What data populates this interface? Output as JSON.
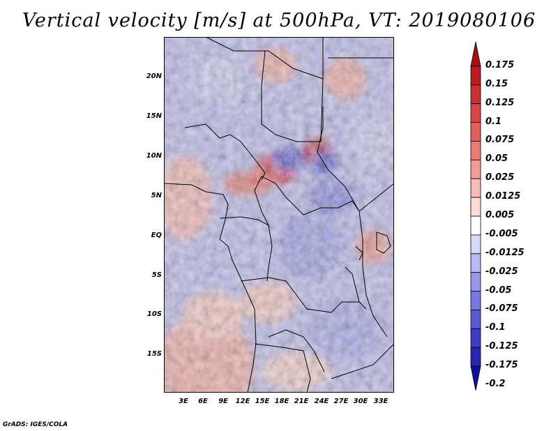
{
  "title": "Vertical velocity [m/s] at 500hPa, VT: 2019080106",
  "credit": "GrADS: IGES/COLA",
  "map": {
    "lat_labels": [
      "20N",
      "15N",
      "10N",
      "5N",
      "EQ",
      "5S",
      "10S",
      "15S"
    ],
    "lon_labels": [
      "3E",
      "6E",
      "9E",
      "12E",
      "15E",
      "18E",
      "21E",
      "24E",
      "27E",
      "30E",
      "33E"
    ]
  },
  "colorbar": {
    "labels": [
      "0.175",
      "0.15",
      "0.125",
      "0.1",
      "0.075",
      "0.05",
      "0.025",
      "0.0125",
      "0.005",
      "-0.005",
      "-0.0125",
      "-0.025",
      "-0.05",
      "-0.075",
      "-0.1",
      "-0.125",
      "-0.175",
      "-0.2"
    ],
    "colors": [
      "#a50f15",
      "#b81c22",
      "#c92f33",
      "#d84545",
      "#e25f5c",
      "#eb7b78",
      "#f39b97",
      "#f8bcb8",
      "#fddcd9",
      "#ffffff",
      "#d8d8f8",
      "#b8b8f2",
      "#9898ea",
      "#7878e0",
      "#5a5ad4",
      "#3e3ec4",
      "#2626b0",
      "#101098"
    ]
  }
}
